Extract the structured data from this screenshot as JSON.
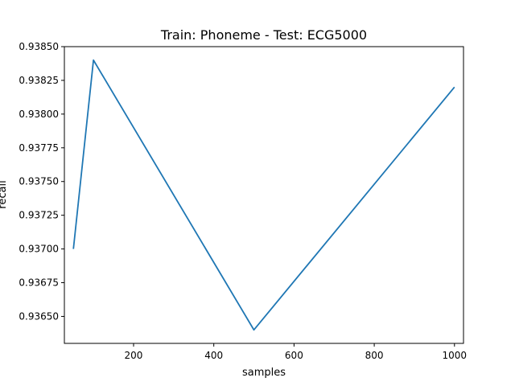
{
  "chart_data": {
    "type": "line",
    "title": "Train: Phoneme - Test: ECG5000",
    "xlabel": "samples",
    "ylabel": "recall",
    "xlim": [
      27.5,
      1022.5
    ],
    "ylim": [
      0.9363,
      0.9385
    ],
    "x_ticks": [
      200,
      400,
      600,
      800,
      1000
    ],
    "y_ticks": [
      "0.93650",
      "0.93675",
      "0.93700",
      "0.93725",
      "0.93750",
      "0.93775",
      "0.93800",
      "0.93825",
      "0.93850"
    ],
    "grid": false,
    "series": [
      {
        "color": "#1f77b4",
        "x": [
          50,
          100,
          500,
          1000
        ],
        "y": [
          0.937,
          0.9384,
          0.9364,
          0.9382
        ]
      }
    ]
  }
}
